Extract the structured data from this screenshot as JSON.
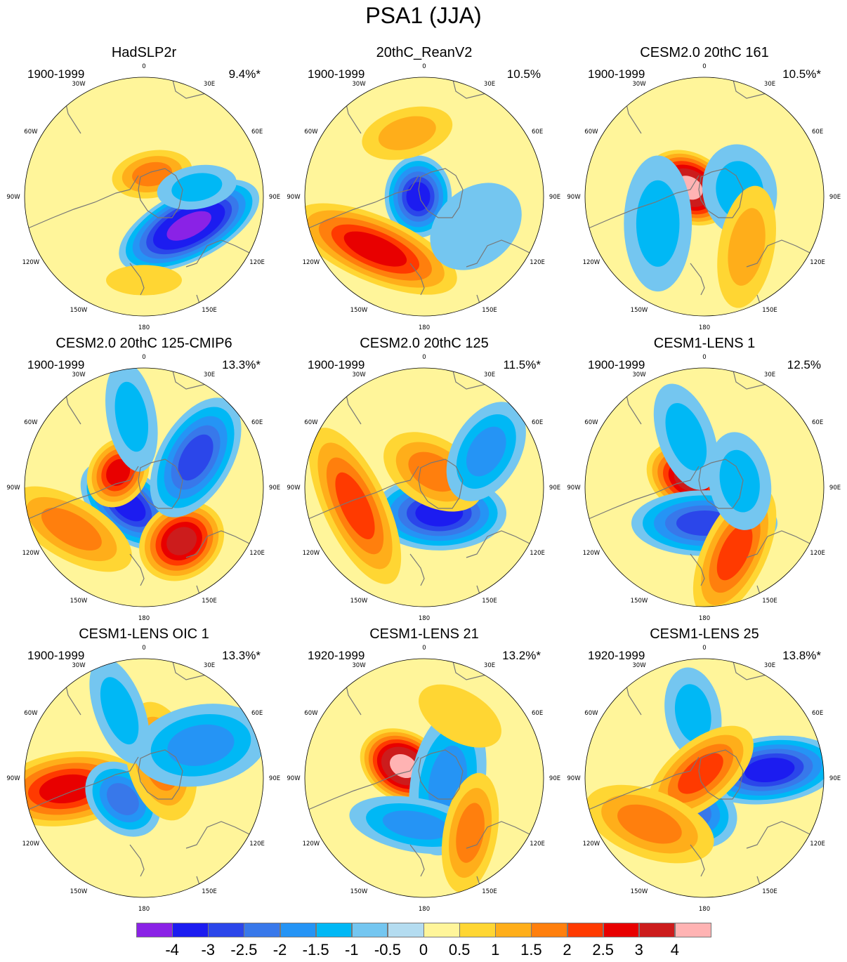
{
  "title": "PSA1 (JJA)",
  "lon_labels": [
    "0",
    "30E",
    "60E",
    "90E",
    "120E",
    "150E",
    "180",
    "150W",
    "120W",
    "90W",
    "60W",
    "30W"
  ],
  "colorbar": {
    "colors": [
      "#8a22e6",
      "#1c1cf0",
      "#2b46ea",
      "#3878ea",
      "#2594f5",
      "#00b8f5",
      "#74c6f0",
      "#b4dcf0",
      "#fff59a",
      "#ffd633",
      "#ffae1a",
      "#ff7f0d",
      "#ff3a00",
      "#e80000",
      "#cc1c1c",
      "#ffb3b3"
    ],
    "labels": [
      "-4",
      "-3",
      "-2.5",
      "-2",
      "-1.5",
      "-1",
      "-0.5",
      "0",
      "0.5",
      "1",
      "1.5",
      "2",
      "2.5",
      "3",
      "4"
    ]
  },
  "panels": [
    {
      "title": "HadSLP2r",
      "period": "1900-1999",
      "pct": "9.4%*",
      "blobs": [
        {
          "lon": 123,
          "r": 0.45,
          "v": -4,
          "a": 2.0,
          "b": 0.9,
          "rot": 30
        },
        {
          "lon": 20,
          "r": 0.2,
          "v": 1.5,
          "a": 1.2,
          "b": 0.7,
          "rot": -30
        },
        {
          "lon": 80,
          "r": 0.45,
          "v": -1,
          "a": 0.7,
          "b": 1.3,
          "rot": 0
        },
        {
          "lon": 180,
          "r": 0.7,
          "v": 0.5,
          "a": 1.5,
          "b": 0.6,
          "rot": 0
        }
      ]
    },
    {
      "title": "20thC_ReanV2",
      "period": "1900-1999",
      "pct": "10.5%",
      "blobs": [
        {
          "lon": 270,
          "r": 0.05,
          "v": -3,
          "a": 1.1,
          "b": 0.9,
          "rot": 0
        },
        {
          "lon": 223,
          "r": 0.6,
          "v": 2.5,
          "a": 2.4,
          "b": 0.9,
          "rot": -20
        },
        {
          "lon": 345,
          "r": 0.55,
          "v": 1,
          "a": 1.5,
          "b": 0.8,
          "rot": 0
        },
        {
          "lon": 120,
          "r": 0.5,
          "v": -0.5,
          "a": 2.0,
          "b": 1.5,
          "rot": 20
        }
      ]
    },
    {
      "title": "CESM2.0 20thC 161",
      "period": "1900-1999",
      "pct": "10.5%*",
      "blobs": [
        {
          "lon": 300,
          "r": 0.15,
          "v": 4,
          "a": 0.9,
          "b": 1.2,
          "rot": 0
        },
        {
          "lon": 240,
          "r": 0.45,
          "v": -1,
          "a": 2.2,
          "b": 1.1,
          "rot": 30
        },
        {
          "lon": 80,
          "r": 0.3,
          "v": -1,
          "a": 1.5,
          "b": 1.2,
          "rot": 0
        },
        {
          "lon": 140,
          "r": 0.55,
          "v": 1,
          "a": 2.0,
          "b": 0.9,
          "rot": -40
        }
      ]
    },
    {
      "title": "CESM2.0 20thC 125-CMIP6",
      "period": "1900-1999",
      "pct": "13.3%*",
      "blobs": [
        {
          "lon": 220,
          "r": 0.2,
          "v": -3,
          "a": 1.5,
          "b": 0.9,
          "rot": 0
        },
        {
          "lon": 300,
          "r": 0.25,
          "v": 2.5,
          "a": 1.0,
          "b": 0.8,
          "rot": 0
        },
        {
          "lon": 145,
          "r": 0.55,
          "v": 3,
          "a": 1.2,
          "b": 1.0,
          "rot": 0
        },
        {
          "lon": 60,
          "r": 0.5,
          "v": -2.5,
          "a": 1.8,
          "b": 1.0,
          "rot": 60
        },
        {
          "lon": 350,
          "r": 0.6,
          "v": -1,
          "a": 1.8,
          "b": 0.8,
          "rot": 90
        },
        {
          "lon": 240,
          "r": 0.7,
          "v": 1.5,
          "a": 2.0,
          "b": 0.9,
          "rot": -30
        }
      ]
    },
    {
      "title": "CESM2.0 20thC 125",
      "period": "1900-1999",
      "pct": "11.5%*",
      "blobs": [
        {
          "lon": 150,
          "r": 0.25,
          "v": -3,
          "a": 1.8,
          "b": 1.0,
          "rot": 30
        },
        {
          "lon": 255,
          "r": 0.6,
          "v": 2,
          "a": 2.4,
          "b": 0.9,
          "rot": -10
        },
        {
          "lon": 30,
          "r": 0.15,
          "v": 1.5,
          "a": 1.6,
          "b": 1.0,
          "rot": 0
        },
        {
          "lon": 60,
          "r": 0.6,
          "v": -1.5,
          "a": 1.6,
          "b": 1.0,
          "rot": 60
        }
      ]
    },
    {
      "title": "CESM1-LENS 1",
      "period": "1900-1999",
      "pct": "12.5%",
      "blobs": [
        {
          "lon": 300,
          "r": 0.15,
          "v": 3,
          "a": 0.9,
          "b": 1.2,
          "rot": 0
        },
        {
          "lon": 180,
          "r": 0.3,
          "v": -2.5,
          "a": 2.0,
          "b": 0.9,
          "rot": 0
        },
        {
          "lon": 155,
          "r": 0.6,
          "v": 2,
          "a": 2.0,
          "b": 0.9,
          "rot": -40
        },
        {
          "lon": 340,
          "r": 0.45,
          "v": -1,
          "a": 1.8,
          "b": 0.9,
          "rot": 90
        },
        {
          "lon": 80,
          "r": 0.3,
          "v": -1,
          "a": 1.6,
          "b": 1.0,
          "rot": 0
        }
      ]
    },
    {
      "title": "CESM1-LENS OIC 1",
      "period": "1900-1999",
      "pct": "13.3%*",
      "blobs": [
        {
          "lon": 262,
          "r": 0.65,
          "v": 2.5,
          "a": 1.0,
          "b": 2.0,
          "rot": 0
        },
        {
          "lon": 225,
          "r": 0.25,
          "v": -2,
          "a": 1.2,
          "b": 0.9,
          "rot": 0
        },
        {
          "lon": 45,
          "r": 0.2,
          "v": 1.5,
          "a": 1.8,
          "b": 1.0,
          "rot": 30
        },
        {
          "lon": 60,
          "r": 0.55,
          "v": -1.5,
          "a": 1.2,
          "b": 2.0,
          "rot": 20
        },
        {
          "lon": 340,
          "r": 0.6,
          "v": -1,
          "a": 1.8,
          "b": 0.8,
          "rot": 90
        }
      ]
    },
    {
      "title": "CESM1-LENS 21",
      "period": "1920-1999",
      "pct": "13.2%*",
      "blobs": [
        {
          "lon": 300,
          "r": 0.2,
          "v": 4,
          "a": 0.9,
          "b": 1.2,
          "rot": 0
        },
        {
          "lon": 100,
          "r": 0.2,
          "v": -1.5,
          "a": 2.2,
          "b": 1.1,
          "rot": 0
        },
        {
          "lon": 190,
          "r": 0.4,
          "v": -1.5,
          "a": 2.0,
          "b": 0.8,
          "rot": 0
        },
        {
          "lon": 140,
          "r": 0.6,
          "v": 1.5,
          "a": 1.8,
          "b": 0.8,
          "rot": -40
        },
        {
          "lon": 30,
          "r": 0.6,
          "v": 0.5,
          "a": 1.8,
          "b": 1.0,
          "rot": 0
        }
      ]
    },
    {
      "title": "CESM1-LENS 25",
      "period": "1920-1999",
      "pct": "13.8%*",
      "blobs": [
        {
          "lon": 83,
          "r": 0.55,
          "v": -3,
          "a": 0.9,
          "b": 1.9,
          "rot": 0
        },
        {
          "lon": 200,
          "r": 0.3,
          "v": -2,
          "a": 1.3,
          "b": 1.0,
          "rot": 0
        },
        {
          "lon": 350,
          "r": 0.55,
          "v": -1,
          "a": 1.5,
          "b": 0.9,
          "rot": 90
        },
        {
          "lon": 320,
          "r": 0.05,
          "v": 2,
          "a": 1.8,
          "b": 0.9,
          "rot": 0
        },
        {
          "lon": 230,
          "r": 0.6,
          "v": 1.5,
          "a": 2.0,
          "b": 1.0,
          "rot": -30
        }
      ]
    }
  ]
}
